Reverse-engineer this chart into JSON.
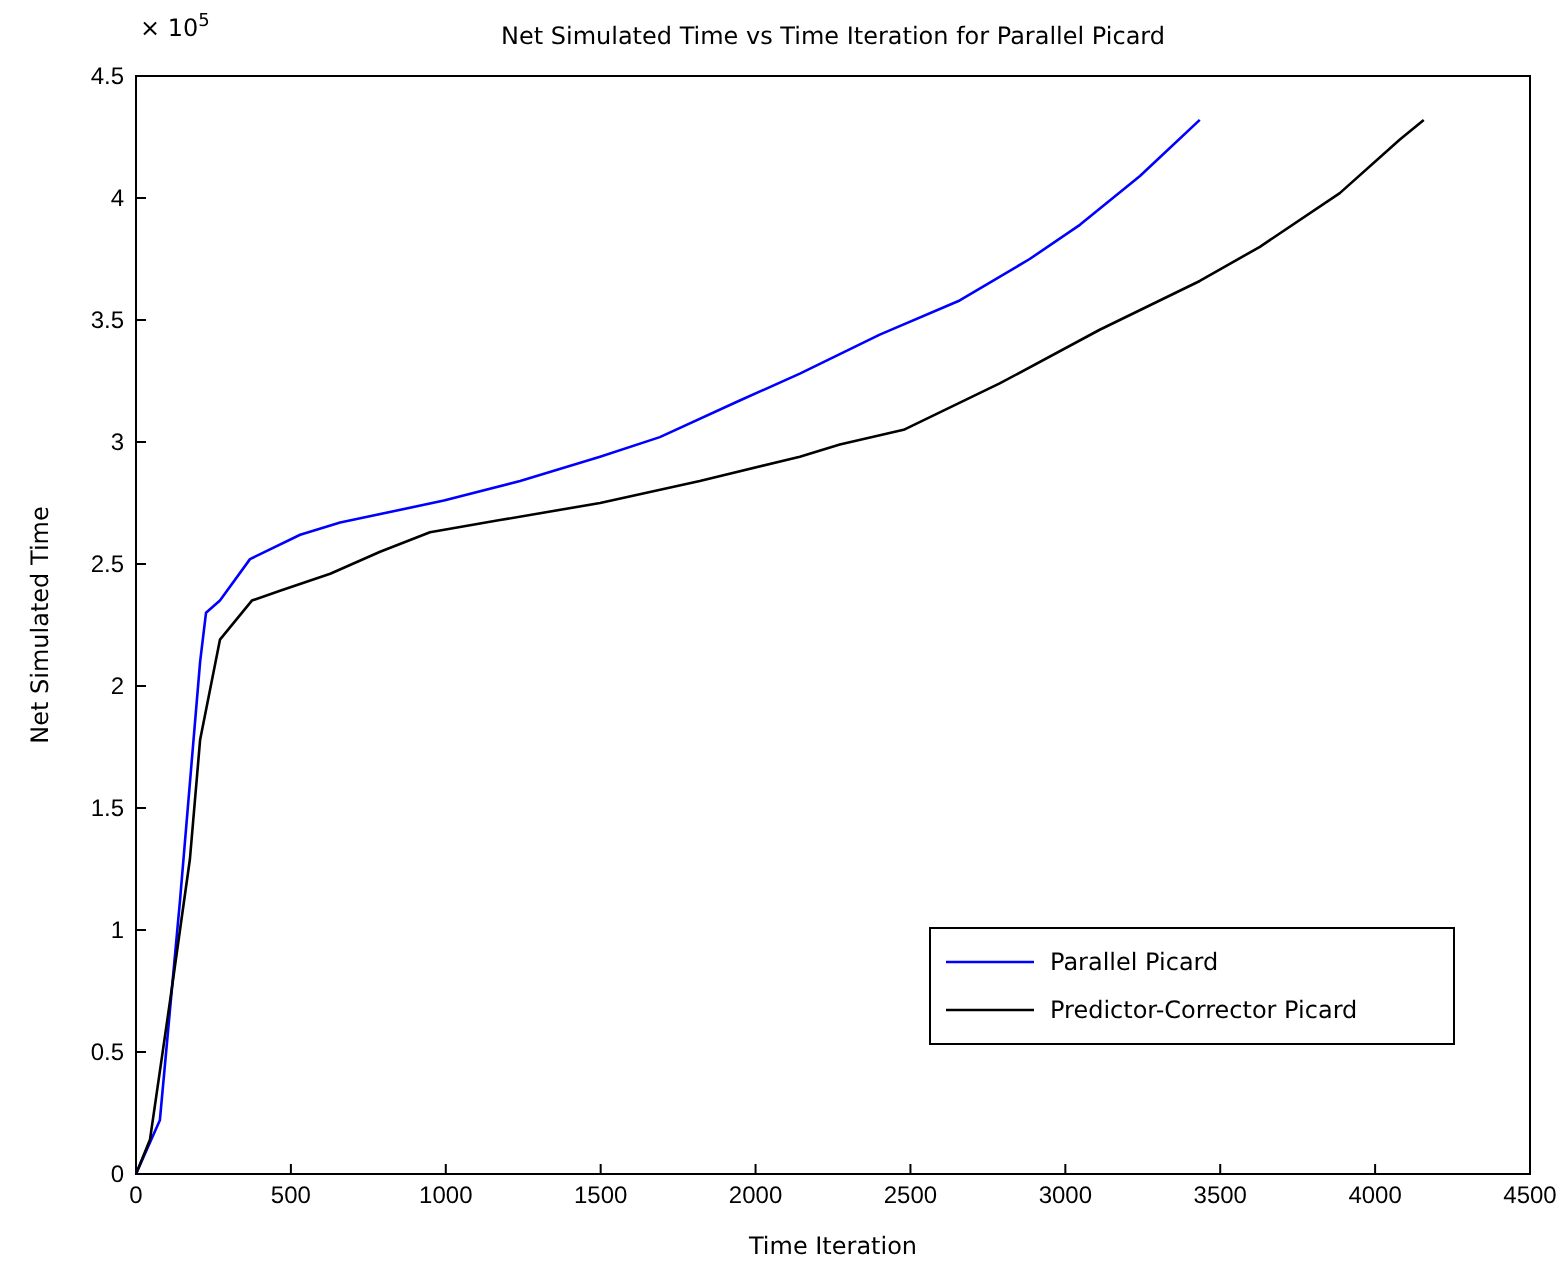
{
  "chart_data": {
    "type": "line",
    "title": "Net Simulated Time vs Time Iteration for Parallel Picard",
    "xlabel": "Time Iteration",
    "ylabel": "Net Simulated Time",
    "annotations": [
      "× 10$^{5}$"
    ],
    "xlim": [
      0,
      4500
    ],
    "xticks": [
      0,
      500,
      1000,
      1500,
      2000,
      2500,
      3000,
      3500,
      4000,
      4500
    ],
    "ylim": [
      0,
      4.5
    ],
    "yticks": [
      0,
      0.5,
      1,
      1.5,
      2,
      2.5,
      3,
      3.5,
      4,
      4.5
    ],
    "grid": false,
    "legend": "bottom right",
    "marker": "none",
    "line_style": "solid",
    "series": [
      {
        "name": "Parallel Picard",
        "color": "#0000ff",
        "x": [
          0,
          77,
          142,
          207,
          226,
          271,
          368,
          530,
          659,
          994,
          1240,
          1498,
          1691,
          1949,
          2143,
          2401,
          2659,
          2885,
          3047,
          3241,
          3434
        ],
        "values": [
          0,
          0.22,
          1.12,
          2.1,
          2.3,
          2.35,
          2.52,
          2.62,
          2.67,
          2.76,
          2.84,
          2.94,
          3.02,
          3.17,
          3.28,
          3.44,
          3.58,
          3.75,
          3.89,
          4.09,
          4.32
        ]
      },
      {
        "name": "Predictor-Corrector Picard",
        "color": "#000000",
        "x": [
          0,
          45,
          110,
          174,
          207,
          271,
          374,
          465,
          627,
          788,
          949,
          1175,
          1498,
          1820,
          2143,
          2272,
          2478,
          2788,
          3111,
          3434,
          3628,
          3886,
          4080,
          4157
        ],
        "values": [
          0,
          0.14,
          0.71,
          1.29,
          1.78,
          2.19,
          2.35,
          2.39,
          2.46,
          2.55,
          2.63,
          2.68,
          2.75,
          2.84,
          2.94,
          2.99,
          3.05,
          3.24,
          3.46,
          3.66,
          3.8,
          4.02,
          4.24,
          4.32
        ]
      }
    ]
  }
}
